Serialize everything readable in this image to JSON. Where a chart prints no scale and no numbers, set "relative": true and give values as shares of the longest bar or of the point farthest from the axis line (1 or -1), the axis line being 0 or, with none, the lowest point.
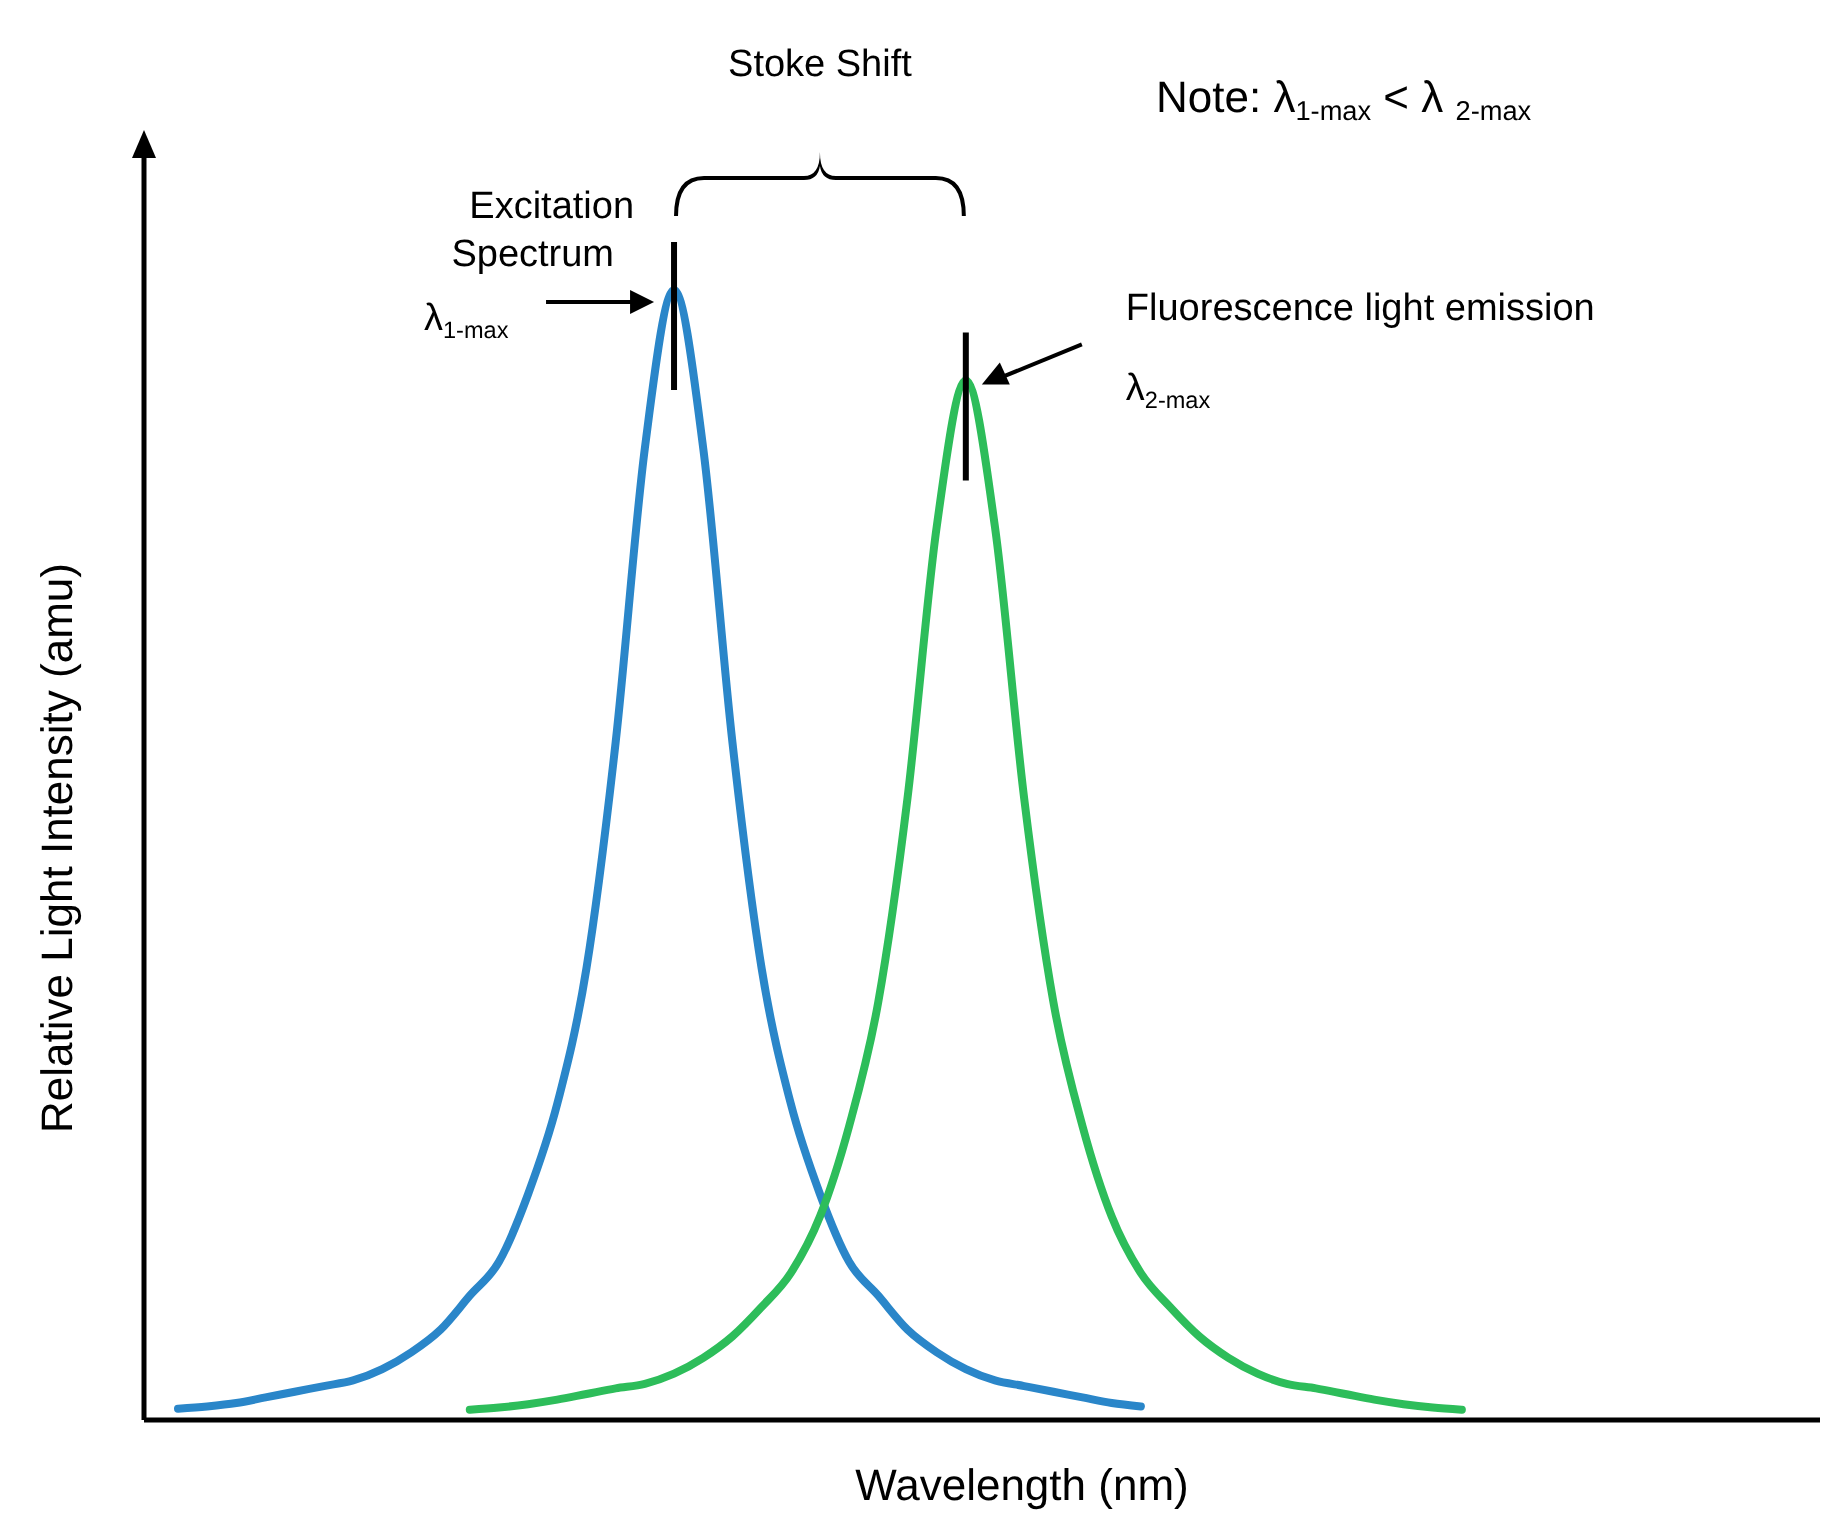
{
  "chart_data": {
    "type": "line",
    "relative": true,
    "xlabel": "Wavelength (nm)",
    "ylabel": "Relative Light Intensity (amu)",
    "categories": [
      null,
      null,
      null,
      null,
      null,
      null,
      null,
      null,
      null,
      null,
      null,
      null,
      null,
      null,
      null,
      null,
      null,
      null,
      null,
      null,
      null,
      null,
      null,
      null,
      null,
      null,
      null,
      null,
      null,
      null,
      null,
      null,
      null,
      null,
      null,
      null,
      null,
      null,
      null,
      null,
      null,
      null,
      null,
      null,
      null,
      null,
      null,
      null,
      null,
      null,
      null,
      null,
      null,
      null,
      null,
      null,
      null
    ],
    "series": [
      {
        "name": "Excitation Spectrum",
        "color": "#2a86c9",
        "values": [
          0.01,
          0.012,
          0.015,
          0.02,
          0.025,
          0.03,
          0.035,
          0.045,
          0.06,
          0.08,
          0.11,
          0.14,
          0.2,
          0.28,
          0.4,
          0.6,
          0.86,
          1,
          0.86,
          0.6,
          0.4,
          0.28,
          0.2,
          0.14,
          0.11,
          0.08,
          0.06,
          0.045,
          0.035,
          0.03,
          0.025,
          0.02,
          0.015,
          0.012,
          null,
          null,
          null,
          null,
          null,
          null,
          null,
          null,
          null,
          null,
          null,
          null,
          null,
          null,
          null,
          null,
          null,
          null,
          null,
          null,
          null,
          null,
          null
        ]
      },
      {
        "name": "Fluorescence light emission",
        "color": "#2dbd5a",
        "values": [
          null,
          null,
          null,
          null,
          null,
          null,
          null,
          null,
          null,
          null,
          0.009,
          0.011,
          0.014,
          0.018,
          0.023,
          0.028,
          0.032,
          0.041,
          0.055,
          0.074,
          0.1,
          0.13,
          0.18,
          0.26,
          0.37,
          0.55,
          0.79,
          0.92,
          0.79,
          0.55,
          0.37,
          0.26,
          0.18,
          0.13,
          0.1,
          0.074,
          0.055,
          0.041,
          0.032,
          0.028,
          0.023,
          0.018,
          0.014,
          0.011,
          0.009,
          null,
          null,
          null,
          null,
          null,
          null,
          null,
          null,
          null,
          null,
          null,
          null
        ]
      }
    ],
    "annotations": [
      "λ$_{1-max}$",
      "λ$_{2-max}$",
      "Stoke Shift",
      "Note: λ$_{1-max}$ < λ $_{2-max}$"
    ]
  }
}
